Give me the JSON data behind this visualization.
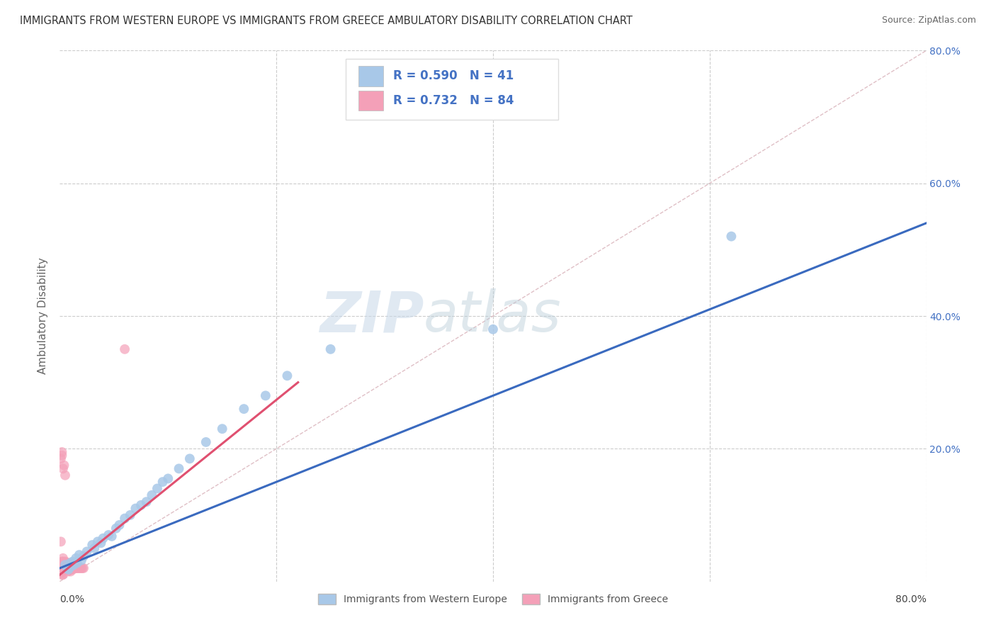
{
  "title": "IMMIGRANTS FROM WESTERN EUROPE VS IMMIGRANTS FROM GREECE AMBULATORY DISABILITY CORRELATION CHART",
  "source": "Source: ZipAtlas.com",
  "ylabel": "Ambulatory Disability",
  "series1_label": "Immigrants from Western Europe",
  "series2_label": "Immigrants from Greece",
  "series1_color": "#a8c8e8",
  "series2_color": "#f4a0b8",
  "series1_line_color": "#3a6abf",
  "series2_line_color": "#e05070",
  "series1_R": 0.59,
  "series1_N": 41,
  "series2_R": 0.732,
  "series2_N": 84,
  "legend_R_color": "#4472c4",
  "diag_line_color": "#d8b0b8",
  "watermark_zip": "ZIP",
  "watermark_atlas": "atlas",
  "xlim": [
    0.0,
    0.8
  ],
  "ylim": [
    0.0,
    0.8
  ],
  "series1_x": [
    0.005,
    0.007,
    0.008,
    0.01,
    0.01,
    0.012,
    0.013,
    0.015,
    0.016,
    0.018,
    0.02,
    0.022,
    0.025,
    0.03,
    0.032,
    0.035,
    0.038,
    0.04,
    0.045,
    0.048,
    0.052,
    0.055,
    0.06,
    0.065,
    0.07,
    0.075,
    0.08,
    0.085,
    0.09,
    0.095,
    0.1,
    0.11,
    0.12,
    0.135,
    0.15,
    0.17,
    0.19,
    0.21,
    0.25,
    0.62,
    0.4
  ],
  "series1_y": [
    0.025,
    0.02,
    0.018,
    0.028,
    0.022,
    0.03,
    0.025,
    0.035,
    0.028,
    0.04,
    0.032,
    0.038,
    0.045,
    0.055,
    0.05,
    0.06,
    0.058,
    0.065,
    0.07,
    0.068,
    0.08,
    0.085,
    0.095,
    0.1,
    0.11,
    0.115,
    0.12,
    0.13,
    0.14,
    0.15,
    0.155,
    0.17,
    0.185,
    0.21,
    0.23,
    0.26,
    0.28,
    0.31,
    0.35,
    0.52,
    0.38
  ],
  "series2_x": [
    0.001,
    0.001,
    0.001,
    0.001,
    0.002,
    0.002,
    0.002,
    0.002,
    0.002,
    0.002,
    0.002,
    0.002,
    0.002,
    0.003,
    0.003,
    0.003,
    0.003,
    0.003,
    0.003,
    0.003,
    0.003,
    0.004,
    0.004,
    0.004,
    0.004,
    0.004,
    0.005,
    0.005,
    0.005,
    0.005,
    0.005,
    0.006,
    0.006,
    0.006,
    0.006,
    0.006,
    0.007,
    0.007,
    0.007,
    0.007,
    0.007,
    0.007,
    0.008,
    0.008,
    0.008,
    0.008,
    0.008,
    0.009,
    0.009,
    0.009,
    0.009,
    0.01,
    0.01,
    0.01,
    0.01,
    0.01,
    0.011,
    0.011,
    0.011,
    0.011,
    0.012,
    0.012,
    0.012,
    0.012,
    0.013,
    0.013,
    0.014,
    0.014,
    0.015,
    0.016,
    0.017,
    0.018,
    0.019,
    0.02,
    0.021,
    0.022,
    0.001,
    0.001,
    0.002,
    0.002,
    0.003,
    0.004,
    0.005,
    0.06
  ],
  "series2_y": [
    0.02,
    0.022,
    0.018,
    0.015,
    0.02,
    0.022,
    0.018,
    0.025,
    0.015,
    0.012,
    0.03,
    0.028,
    0.01,
    0.02,
    0.022,
    0.018,
    0.025,
    0.03,
    0.015,
    0.01,
    0.035,
    0.02,
    0.022,
    0.018,
    0.025,
    0.028,
    0.02,
    0.022,
    0.025,
    0.018,
    0.03,
    0.02,
    0.022,
    0.018,
    0.025,
    0.028,
    0.02,
    0.022,
    0.018,
    0.025,
    0.028,
    0.015,
    0.02,
    0.022,
    0.018,
    0.025,
    0.028,
    0.02,
    0.022,
    0.018,
    0.02,
    0.02,
    0.022,
    0.018,
    0.025,
    0.015,
    0.02,
    0.022,
    0.018,
    0.025,
    0.02,
    0.022,
    0.018,
    0.025,
    0.02,
    0.022,
    0.02,
    0.022,
    0.02,
    0.02,
    0.02,
    0.02,
    0.02,
    0.02,
    0.02,
    0.02,
    0.185,
    0.06,
    0.19,
    0.195,
    0.17,
    0.175,
    0.16,
    0.35
  ],
  "series1_line_x0": 0.0,
  "series1_line_x1": 0.8,
  "series1_line_y0": 0.02,
  "series1_line_y1": 0.54,
  "series2_line_x0": 0.0,
  "series2_line_x1": 0.22,
  "series2_line_y0": 0.01,
  "series2_line_y1": 0.3
}
